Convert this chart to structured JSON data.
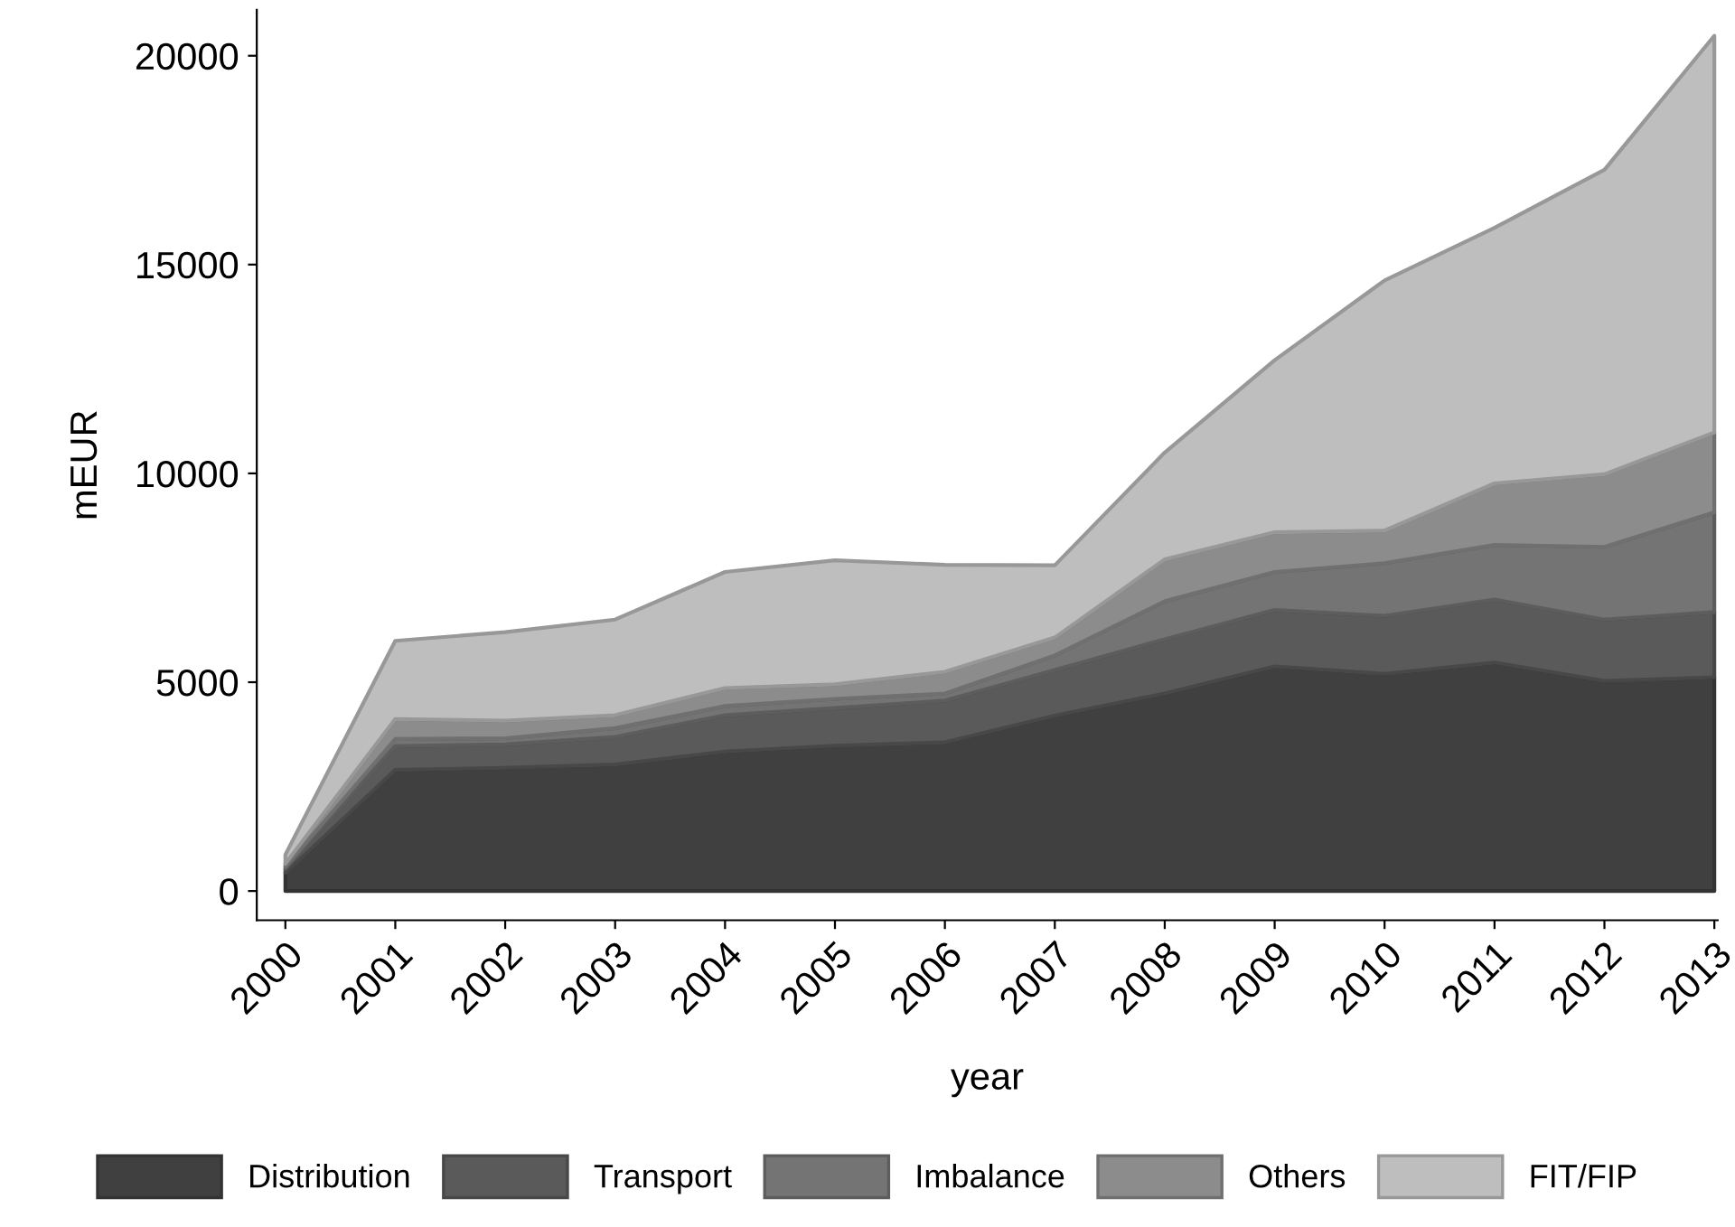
{
  "chart_data": {
    "type": "area",
    "stacked": true,
    "xlabel": "year",
    "ylabel": "mEUR",
    "x": [
      2000,
      2001,
      2002,
      2003,
      2004,
      2005,
      2006,
      2007,
      2008,
      2009,
      2010,
      2011,
      2012,
      2013
    ],
    "xlim": [
      1999.74,
      2013.03
    ],
    "xticks": [
      2000,
      2001,
      2002,
      2003,
      2004,
      2005,
      2006,
      2007,
      2008,
      2009,
      2010,
      2011,
      2012,
      2013
    ],
    "ylim": [
      -700,
      21100
    ],
    "yticks": [
      0,
      5000,
      10000,
      15000,
      20000
    ],
    "grid": false,
    "legend": "bottom",
    "series": [
      {
        "name": "Distribution",
        "color": "#404040",
        "values": [
          430,
          2900,
          2950,
          3030,
          3340,
          3480,
          3560,
          4200,
          4730,
          5380,
          5200,
          5470,
          5030,
          5120
        ]
      },
      {
        "name": "Transport",
        "color": "#5a5a5a",
        "values": [
          100,
          570,
          560,
          660,
          870,
          900,
          1000,
          1090,
          1300,
          1350,
          1390,
          1510,
          1470,
          1560
        ]
      },
      {
        "name": "Imbalance",
        "color": "#747474",
        "values": [
          50,
          170,
          150,
          210,
          220,
          220,
          170,
          350,
          910,
          910,
          1260,
          1310,
          1740,
          2390
        ]
      },
      {
        "name": "Others",
        "color": "#8c8c8c",
        "values": [
          70,
          480,
          420,
          310,
          430,
          350,
          520,
          430,
          1000,
          950,
          780,
          1470,
          1740,
          1910
        ]
      },
      {
        "name": "FIT/FIP",
        "color": "#bebebe",
        "values": [
          220,
          1870,
          2120,
          2290,
          2780,
          2970,
          2560,
          1730,
          2560,
          4120,
          5990,
          6120,
          7290,
          9500
        ]
      }
    ]
  }
}
